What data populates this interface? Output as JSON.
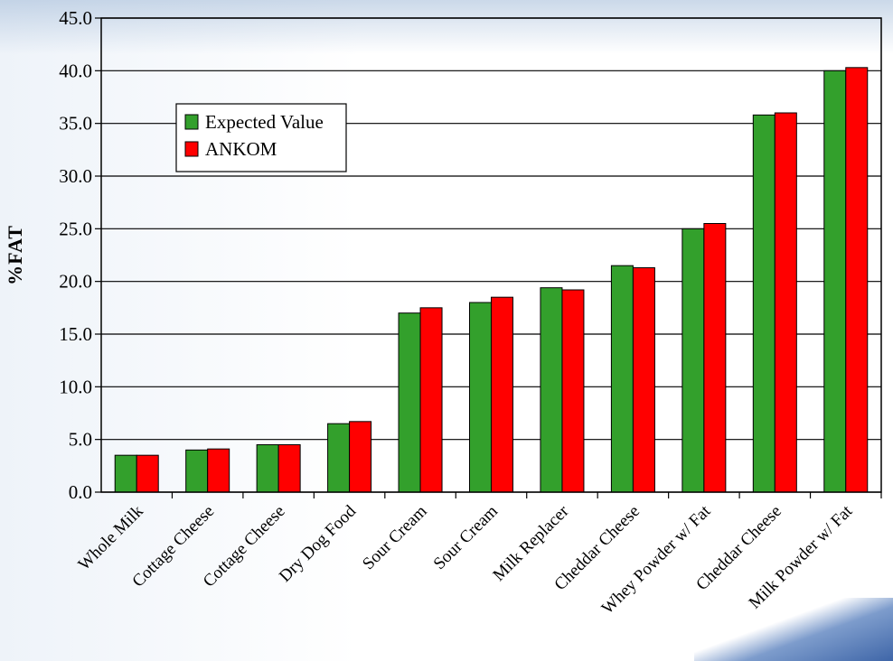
{
  "chart_data": {
    "type": "bar",
    "title": "",
    "xlabel": "",
    "ylabel": "%FAT",
    "ylim": [
      0,
      45
    ],
    "yticks": [
      "0.0",
      "5.0",
      "10.0",
      "15.0",
      "20.0",
      "25.0",
      "30.0",
      "35.0",
      "40.0",
      "45.0"
    ],
    "grid": true,
    "legend_position": "upper-left",
    "categories": [
      "Whole Milk",
      "Cottage Cheese",
      "Cottage Cheese",
      "Dry Dog Food",
      "Sour Cream",
      "Sour Cream",
      "Milk Replacer",
      "Cheddar Cheese",
      "Whey Powder w/ Fat",
      "Cheddar Cheese",
      "Milk Powder w/ Fat"
    ],
    "series": [
      {
        "name": "Expected Value",
        "color": "#33a02c",
        "values": [
          3.5,
          4.0,
          4.5,
          6.5,
          17.0,
          18.0,
          19.4,
          21.5,
          25.0,
          35.8,
          40.0
        ]
      },
      {
        "name": "ANKOM",
        "color": "#ff0000",
        "values": [
          3.5,
          4.1,
          4.5,
          6.7,
          17.5,
          18.5,
          19.2,
          21.3,
          25.5,
          36.0,
          40.3
        ]
      }
    ]
  }
}
